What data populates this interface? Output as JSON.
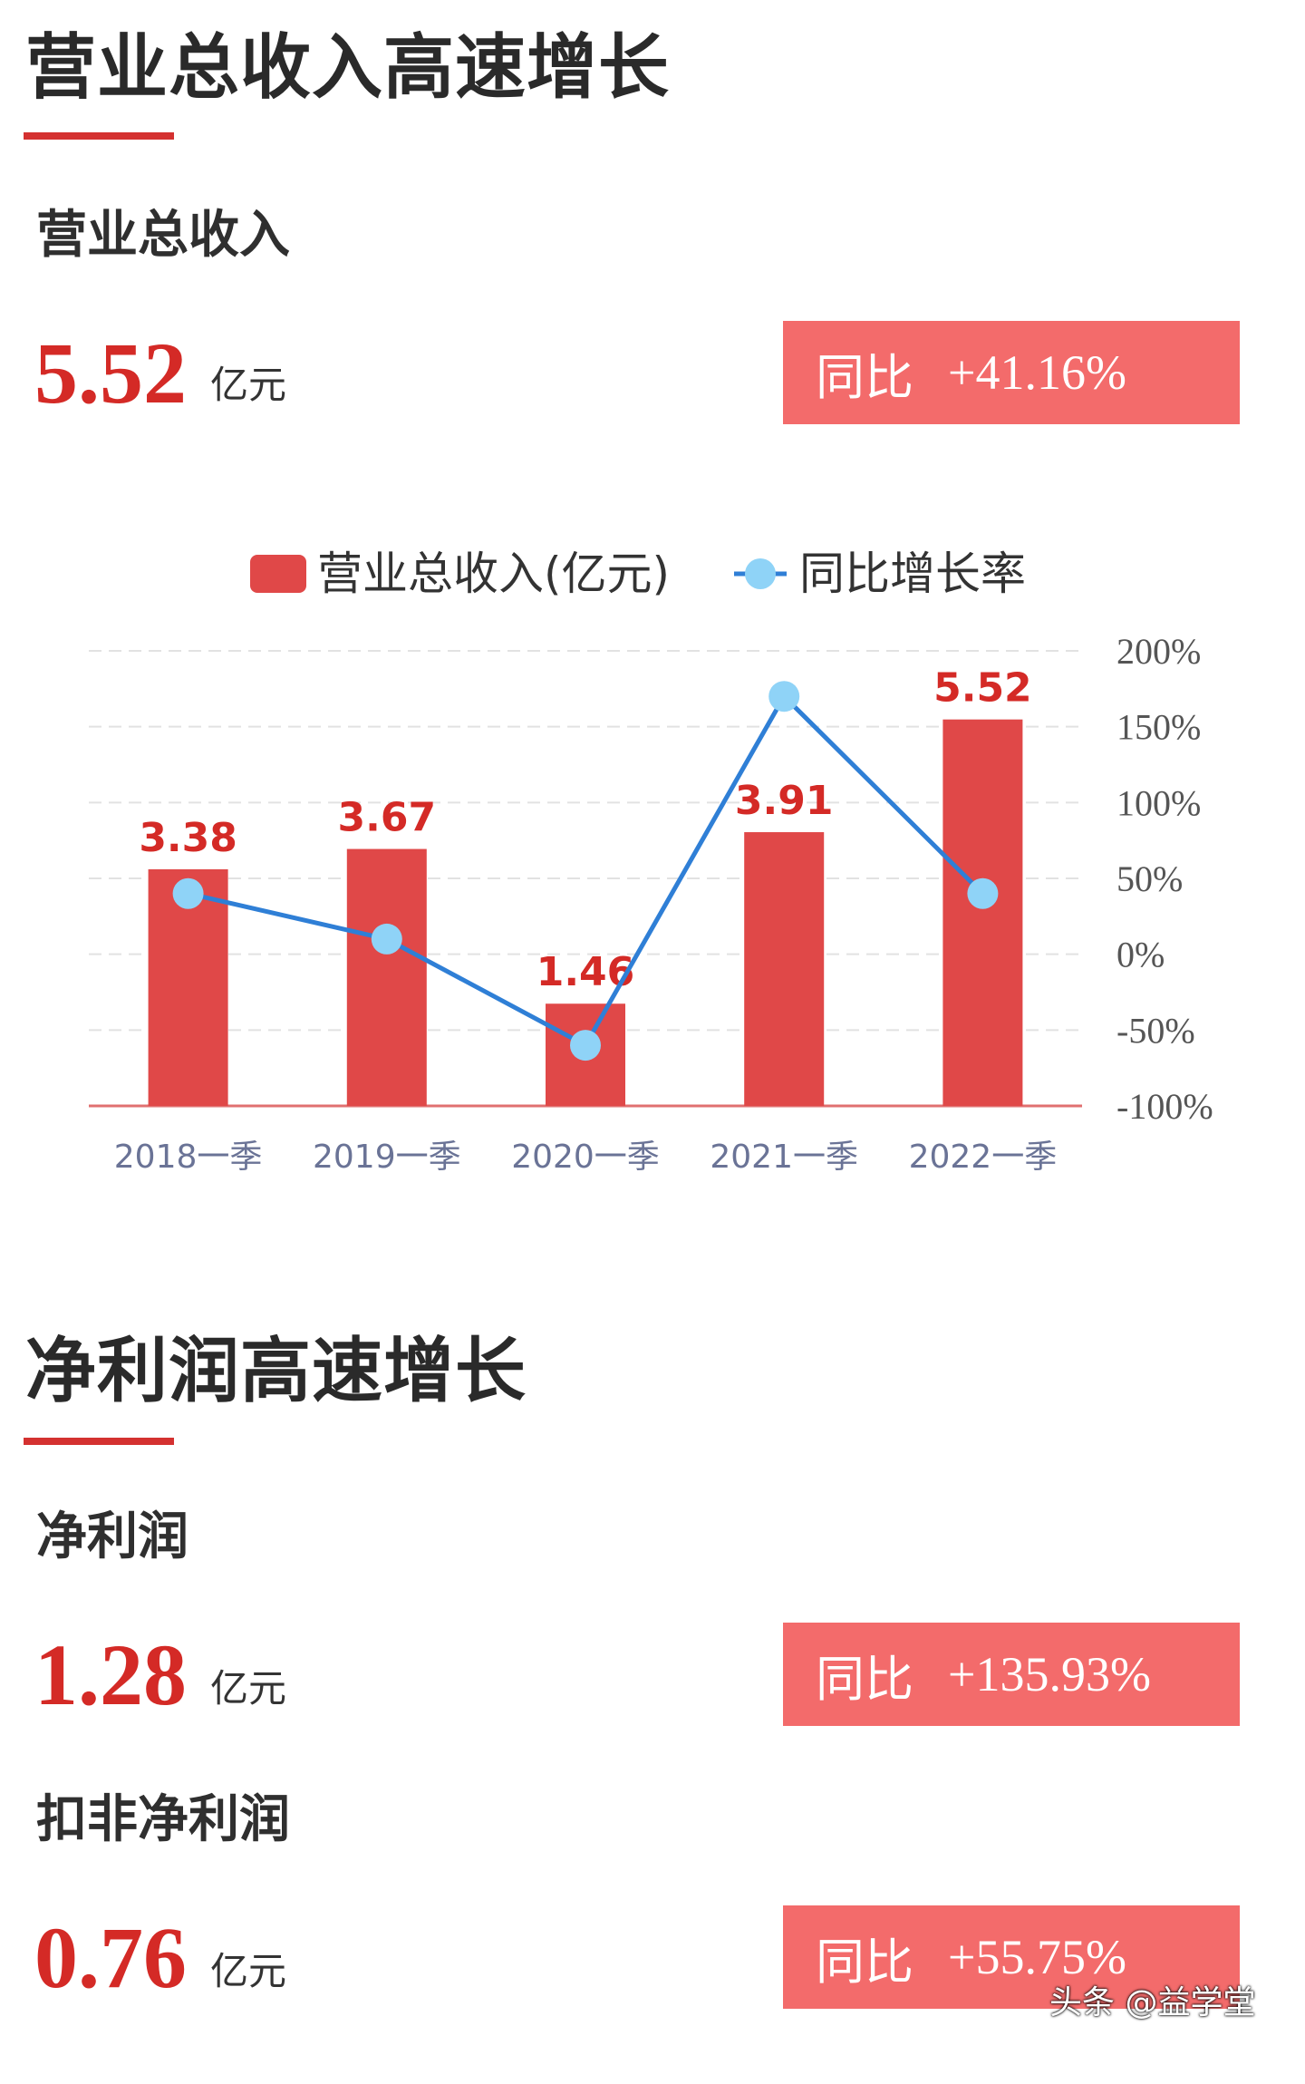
{
  "section1": {
    "title": "营业总收入高速增长",
    "metric": {
      "label": "营业总收入",
      "value": "5.52",
      "unit": "亿元",
      "yoy_label": "同比",
      "yoy_value": "+41.16%"
    }
  },
  "chart_data": {
    "type": "bar",
    "categories": [
      "2018一季",
      "2019一季",
      "2020一季",
      "2021一季",
      "2022一季"
    ],
    "series": [
      {
        "name": "营业总收入(亿元)",
        "type": "bar",
        "values": [
          3.38,
          3.67,
          1.46,
          3.91,
          5.52
        ],
        "labels": [
          "3.38",
          "3.67",
          "1.46",
          "3.91",
          "5.52"
        ],
        "color": "#e04848"
      },
      {
        "name": "同比增长率",
        "type": "line",
        "axis": "right",
        "values": [
          40,
          10,
          -60,
          170,
          40
        ],
        "color": "#2f7fd6",
        "marker_color": "#8fd3f7"
      }
    ],
    "y_right": {
      "ticks": [
        "200%",
        "150%",
        "100%",
        "50%",
        "0%",
        "-50%",
        "-100%"
      ],
      "ylim": [
        -100,
        200
      ]
    },
    "y_left": {
      "ylim": [
        0,
        6.5
      ]
    },
    "legend": "top",
    "grid": true,
    "colors": {
      "bar": "#e04848",
      "line": "#2f7fd6",
      "marker": "#8fd3f7",
      "grid": "#e2e2e2",
      "axis": "#e07070"
    }
  },
  "section2": {
    "title": "净利润高速增长",
    "metrics": [
      {
        "label": "净利润",
        "value": "1.28",
        "unit": "亿元",
        "yoy_label": "同比",
        "yoy_value": "+135.93%"
      },
      {
        "label": "扣非净利润",
        "value": "0.76",
        "unit": "亿元",
        "yoy_label": "同比",
        "yoy_value": "+55.75%"
      }
    ]
  },
  "watermark": "头条 @益学堂"
}
